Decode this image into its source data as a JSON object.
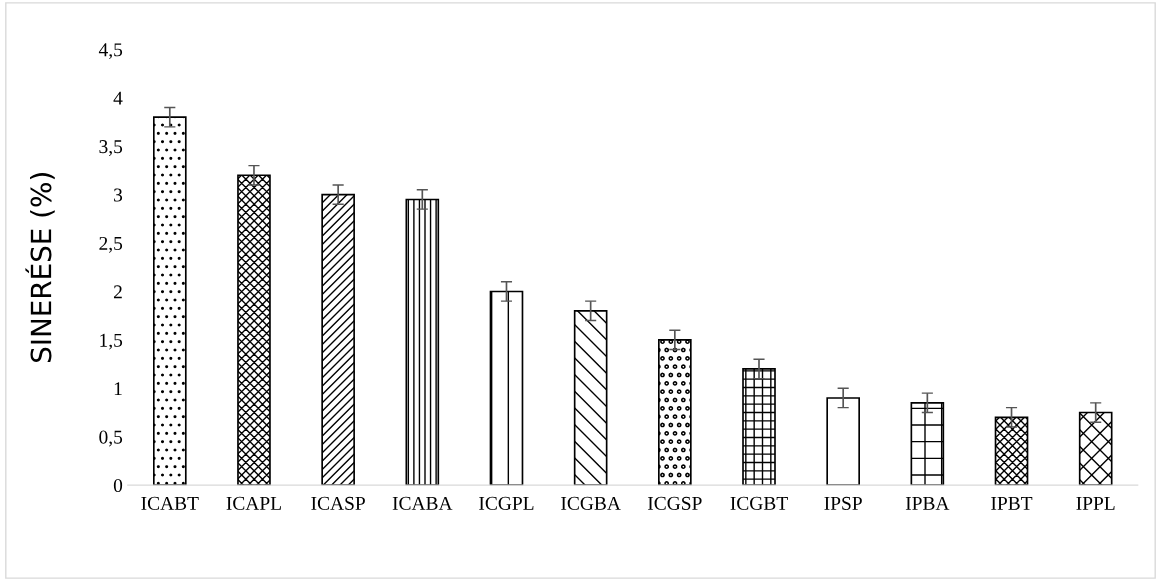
{
  "chart_data": {
    "type": "bar",
    "ylabel": "SINERÉSE (%)",
    "categories": [
      "ICABT",
      "ICAPL",
      "ICASP",
      "ICABA",
      "ICGPL",
      "ICGBA",
      "ICGSP",
      "ICGBT",
      "IPSP",
      "IPBA",
      "IPBT",
      "IPPL"
    ],
    "values": [
      3.8,
      3.2,
      3.0,
      2.95,
      2.0,
      1.8,
      1.5,
      1.2,
      0.9,
      0.85,
      0.7,
      0.75
    ],
    "errors": [
      0.1,
      0.1,
      0.1,
      0.1,
      0.1,
      0.1,
      0.1,
      0.1,
      0.1,
      0.1,
      0.1,
      0.1
    ],
    "color": "#000000",
    "ylim": [
      0,
      4.5
    ],
    "yticks": [
      {
        "value": 0,
        "label": "0"
      },
      {
        "value": 0.5,
        "label": "0,5"
      },
      {
        "value": 1,
        "label": "1"
      },
      {
        "value": 1.5,
        "label": "1,5"
      },
      {
        "value": 2,
        "label": "2"
      },
      {
        "value": 2.5,
        "label": "2,5"
      },
      {
        "value": 3,
        "label": "3"
      },
      {
        "value": 3.5,
        "label": "3,5"
      },
      {
        "value": 4,
        "label": "4"
      },
      {
        "value": 4.5,
        "label": "4,5"
      }
    ],
    "grid": false,
    "legend": false
  }
}
